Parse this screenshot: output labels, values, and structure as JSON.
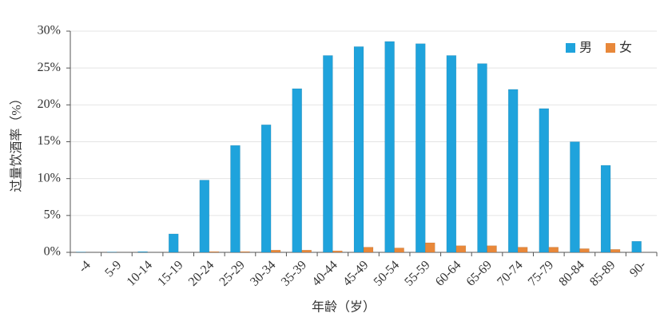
{
  "chart_data": {
    "type": "bar",
    "x_label": "年龄（岁）",
    "y_label": "过量饮酒率（%）",
    "categories": [
      "-4",
      "5-9",
      "10-14",
      "15-19",
      "20-24",
      "25-29",
      "30-34",
      "35-39",
      "40-44",
      "45-49",
      "50-54",
      "55-59",
      "60-64",
      "65-69",
      "70-74",
      "75-79",
      "80-84",
      "85-89",
      "90-"
    ],
    "series": [
      {
        "name": "男",
        "color": "#1fa3dc",
        "values": [
          0.05,
          0.05,
          0.1,
          2.5,
          9.8,
          14.5,
          17.3,
          22.2,
          26.7,
          27.9,
          28.6,
          28.3,
          26.7,
          25.6,
          22.1,
          19.5,
          15.0,
          11.8,
          1.5
        ]
      },
      {
        "name": "女",
        "color": "#e8883a",
        "values": [
          0,
          0,
          0,
          0,
          0.1,
          0.1,
          0.3,
          0.3,
          0.2,
          0.7,
          0.6,
          1.3,
          0.9,
          0.9,
          0.7,
          0.7,
          0.5,
          0.4,
          0
        ]
      }
    ],
    "ylim": [
      0,
      30
    ],
    "yticks": [
      {
        "value": 0,
        "label": "0%"
      },
      {
        "value": 5,
        "label": "5%"
      },
      {
        "value": 10,
        "label": "10%"
      },
      {
        "value": 15,
        "label": "15%"
      },
      {
        "value": 20,
        "label": "20%"
      },
      {
        "value": 25,
        "label": "25%"
      },
      {
        "value": 30,
        "label": "30%"
      }
    ],
    "grid": true,
    "legend": "top-right"
  }
}
